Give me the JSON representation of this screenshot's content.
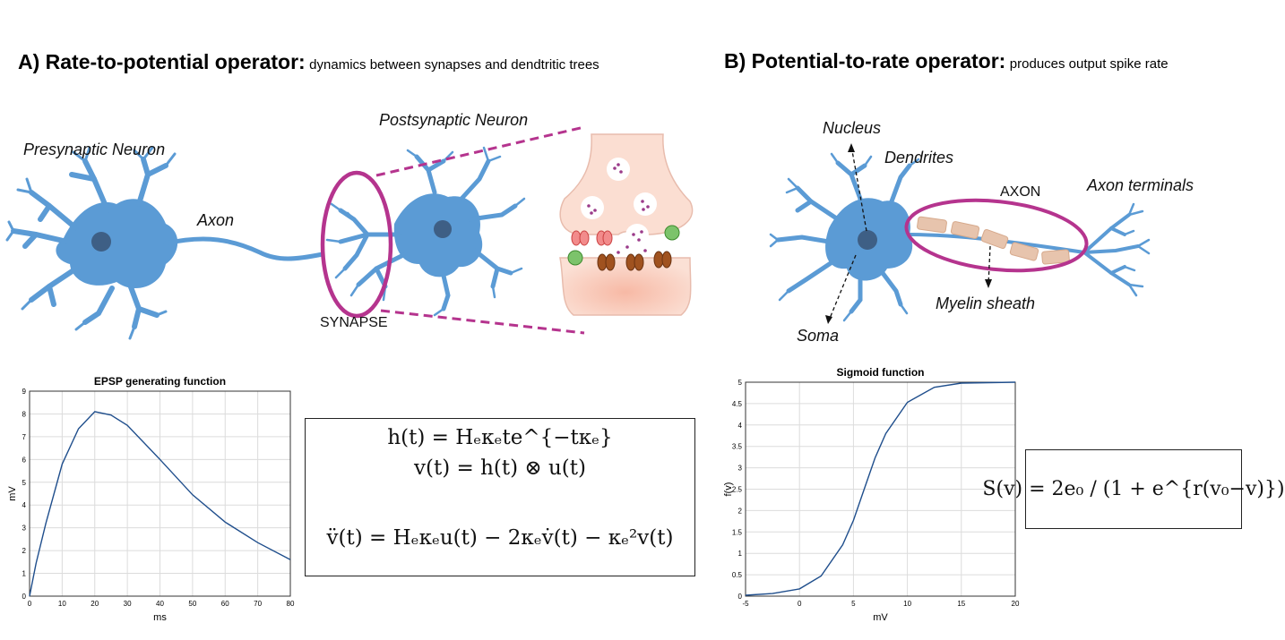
{
  "panel_a": {
    "letter_title": "A) Rate-to-potential operator:",
    "subtitle": "dynamics between synapses and dendtritic trees",
    "labels": {
      "presynaptic": "Presynaptic Neuron",
      "axon": "Axon",
      "postsynaptic": "Postsynaptic Neuron",
      "synapse": "SYNAPSE"
    },
    "equations": {
      "line1": "h(t) = Hₑκₑte^{−tκₑ}",
      "line2": "v(t) = h(t) ⊗ u(t)",
      "line3": "v̈(t) = Hₑκₑu(t) − 2κₑv̇(t) − κₑ²v(t)"
    }
  },
  "panel_b": {
    "letter_title": "B) Potential-to-rate operator:",
    "subtitle": "produces output spike rate",
    "labels": {
      "nucleus": "Nucleus",
      "dendrites": "Dendrites",
      "axon": "AXON",
      "axon_terminals": "Axon terminals",
      "myelin": "Myelin sheath",
      "soma": "Soma"
    },
    "equation": "S(v) = 2e₀ / (1 + e^{r(v₀−v)})"
  },
  "colors": {
    "neuron": "#5b9bd5",
    "nucleus": "#3e5f85",
    "highlight": "#b5348e",
    "curve": "#1f4e8c",
    "myelin": "#e7c4ad"
  },
  "chart_data": [
    {
      "type": "line",
      "title": "EPSP generating function",
      "xlabel": "ms",
      "ylabel": "mV",
      "xlim": [
        0,
        80
      ],
      "ylim": [
        0,
        9
      ],
      "xticks": [
        0,
        10,
        20,
        30,
        40,
        50,
        60,
        70,
        80
      ],
      "yticks": [
        0,
        1,
        2,
        3,
        4,
        5,
        6,
        7,
        8,
        9
      ],
      "grid": true,
      "x": [
        0,
        2,
        5,
        10,
        15,
        20,
        25,
        30,
        40,
        50,
        60,
        70,
        80
      ],
      "y": [
        0,
        1.45,
        3.2,
        5.8,
        7.35,
        8.1,
        7.95,
        7.5,
        6.0,
        4.45,
        3.25,
        2.35,
        1.6
      ]
    },
    {
      "type": "line",
      "title": "Sigmoid function",
      "xlabel": "mV",
      "ylabel": "f(v)",
      "xlim": [
        -5,
        20
      ],
      "ylim": [
        0,
        5
      ],
      "xticks": [
        -5,
        0,
        5,
        10,
        15,
        20
      ],
      "yticks": [
        0,
        0.5,
        1,
        1.5,
        2,
        2.5,
        3,
        3.5,
        4,
        4.5,
        5
      ],
      "grid": true,
      "x": [
        -5,
        -2.5,
        0,
        2,
        4,
        5,
        6,
        7,
        8,
        10,
        12.5,
        15,
        20
      ],
      "y": [
        0.02,
        0.06,
        0.17,
        0.47,
        1.2,
        1.77,
        2.5,
        3.23,
        3.8,
        4.53,
        4.88,
        4.98,
        5.0
      ]
    }
  ]
}
